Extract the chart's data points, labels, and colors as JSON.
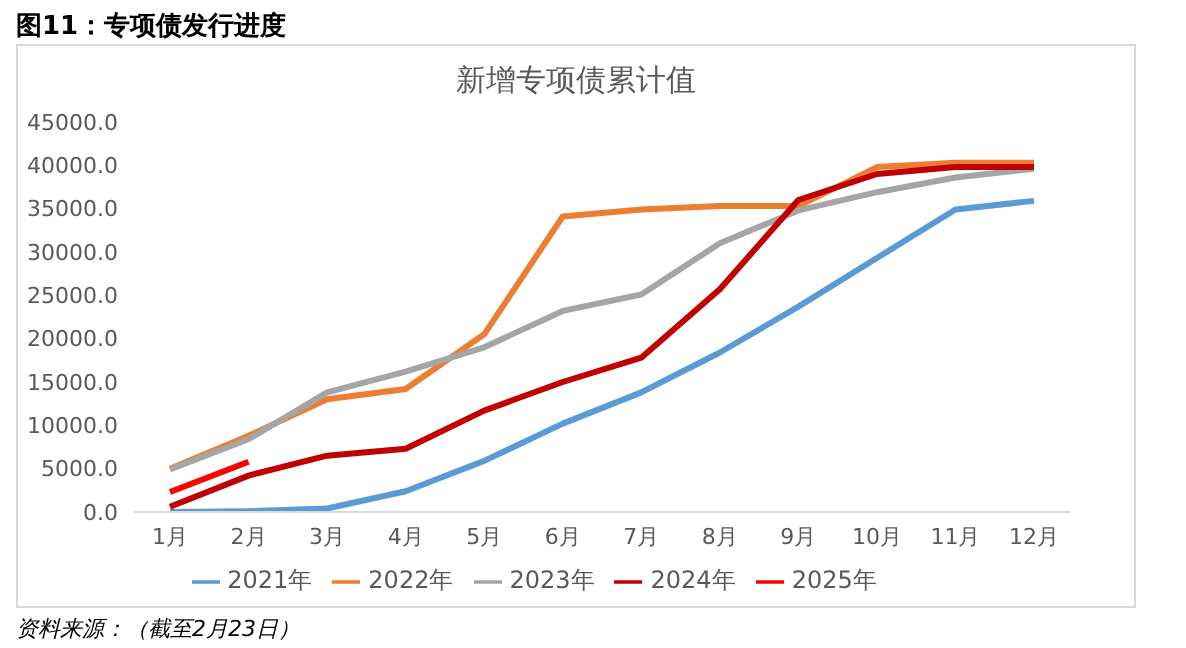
{
  "chart_data": {
    "type": "line",
    "title": "图11：专项债发行进度",
    "subtitle": "新增专项债累计值",
    "annotations": [
      "资料来源：（截至2月23日）"
    ],
    "categories": [
      "1月",
      "2月",
      "3月",
      "4月",
      "5月",
      "6月",
      "7月",
      "8月",
      "9月",
      "10月",
      "11月",
      "12月"
    ],
    "series": [
      {
        "name": "2021年",
        "color": "#5b9bd5",
        "values": [
          0,
          100,
          400,
          2400,
          5900,
          10200,
          13800,
          18400,
          23700,
          29300,
          34900,
          35900
        ]
      },
      {
        "name": "2022年",
        "color": "#ed7d31",
        "values": [
          5000,
          8800,
          13000,
          14200,
          20500,
          34100,
          34900,
          35300,
          35300,
          39800,
          40300,
          40300
        ]
      },
      {
        "name": "2023年",
        "color": "#a5a5a5",
        "values": [
          4900,
          8400,
          13800,
          16200,
          19000,
          23200,
          25100,
          31000,
          34800,
          36900,
          38600,
          39600
        ]
      },
      {
        "name": "2024年",
        "color": "#c00000",
        "values": [
          600,
          4200,
          6500,
          7300,
          11700,
          15000,
          17800,
          25700,
          36000,
          39000,
          39800,
          39800
        ]
      },
      {
        "name": "2025年",
        "color": "#ff0000",
        "values": [
          2300,
          5800,
          null,
          null,
          null,
          null,
          null,
          null,
          null,
          null,
          null,
          null
        ]
      }
    ],
    "ylim": [
      0,
      45000
    ],
    "yticks": [
      {
        "value": 0,
        "label": "0.0"
      },
      {
        "value": 5000,
        "label": "5000.0"
      },
      {
        "value": 10000,
        "label": "10000.0"
      },
      {
        "value": 15000,
        "label": "15000.0"
      },
      {
        "value": 20000,
        "label": "20000.0"
      },
      {
        "value": 25000,
        "label": "25000.0"
      },
      {
        "value": 30000,
        "label": "30000.0"
      },
      {
        "value": 35000,
        "label": "35000.0"
      },
      {
        "value": 40000,
        "label": "40000.0"
      },
      {
        "value": 45000,
        "label": "45000.0"
      }
    ],
    "grid": false,
    "legend": "bottom",
    "marker": "none",
    "line_style": "solid"
  }
}
